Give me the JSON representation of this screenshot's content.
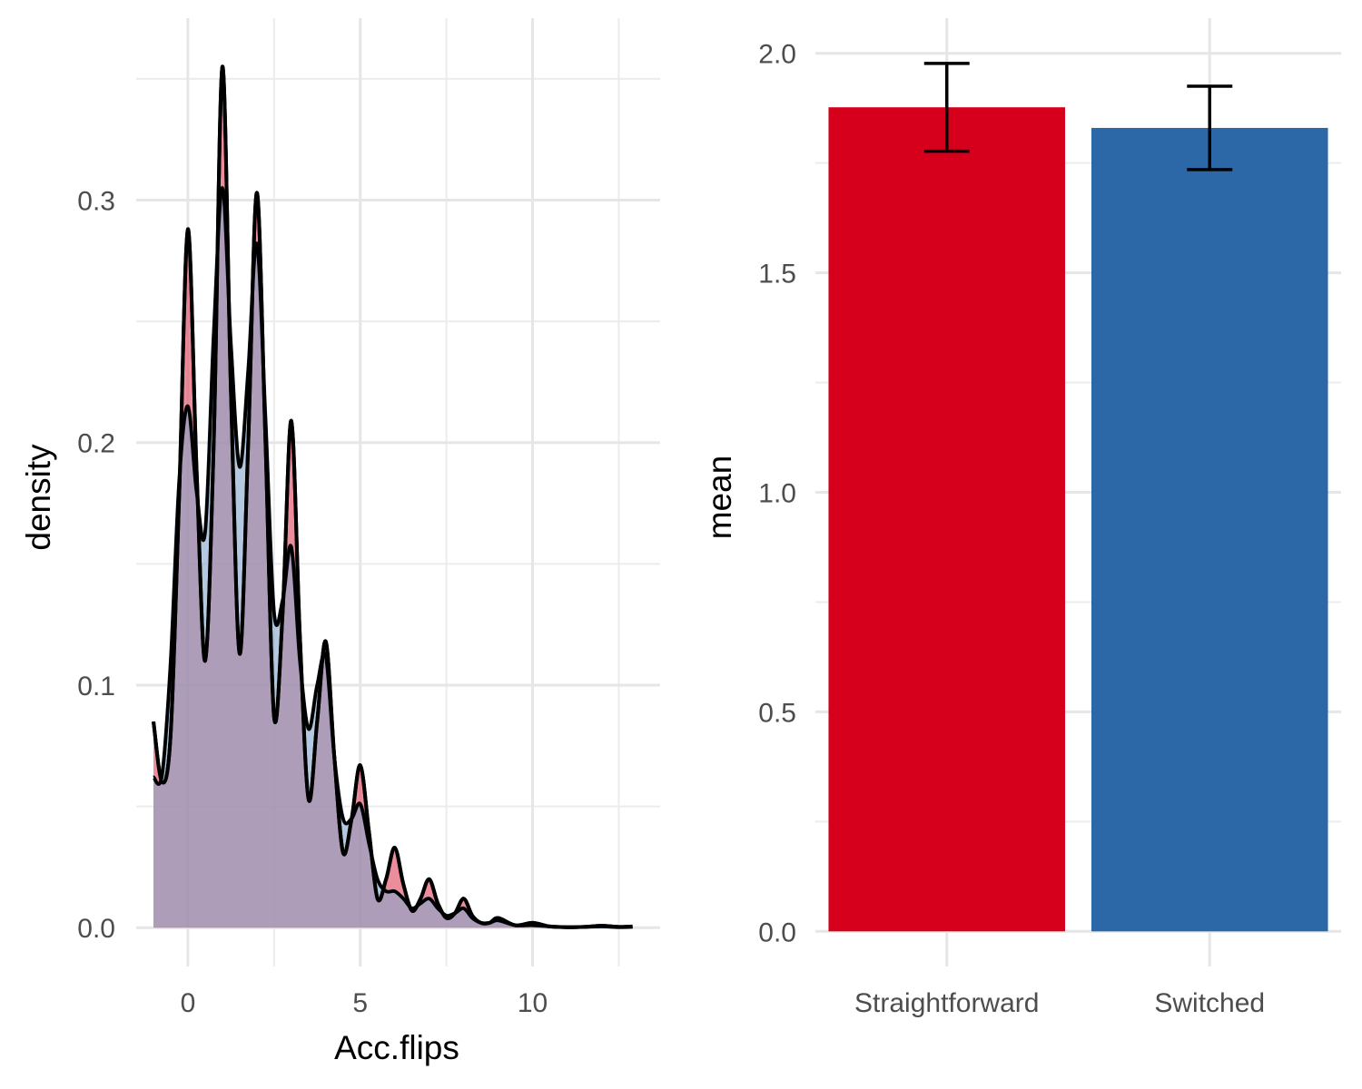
{
  "chart_data": [
    {
      "type": "area",
      "xlabel": "Acc.flips",
      "ylabel": "density",
      "xlim": [
        -1.5,
        13.7
      ],
      "ylim": [
        -0.016,
        0.375
      ],
      "xticks": [
        0,
        5,
        10
      ],
      "xtick_labels": [
        "0",
        "5",
        "10"
      ],
      "yticks": [
        0.0,
        0.1,
        0.2,
        0.3
      ],
      "ytick_labels": [
        "0.0",
        "0.1",
        "0.2",
        "0.3"
      ],
      "grid": true,
      "series": [
        {
          "color": "#e0475d",
          "x": [
            -1.0,
            -0.75,
            -0.5,
            -0.25,
            0.0,
            0.25,
            0.5,
            0.75,
            1.0,
            1.25,
            1.5,
            1.75,
            2.0,
            2.25,
            2.5,
            2.75,
            3.0,
            3.25,
            3.5,
            3.75,
            4.0,
            4.25,
            4.5,
            4.75,
            5.0,
            5.25,
            5.5,
            5.75,
            6.0,
            6.25,
            6.5,
            6.75,
            7.0,
            7.25,
            7.5,
            7.75,
            8.0,
            8.25,
            8.5,
            8.75,
            9.0,
            9.5,
            10.0,
            10.5,
            11.0,
            11.5,
            12.0,
            12.5,
            12.9
          ],
          "y": [
            0.085,
            0.06,
            0.08,
            0.18,
            0.288,
            0.19,
            0.11,
            0.2,
            0.355,
            0.22,
            0.113,
            0.2,
            0.303,
            0.2,
            0.087,
            0.13,
            0.209,
            0.12,
            0.053,
            0.085,
            0.118,
            0.07,
            0.031,
            0.045,
            0.067,
            0.04,
            0.012,
            0.02,
            0.033,
            0.018,
            0.007,
            0.012,
            0.02,
            0.01,
            0.004,
            0.006,
            0.012,
            0.005,
            0.002,
            0.002,
            0.004,
            0.001,
            0.002,
            0.0005,
            0.0002,
            0.0003,
            0.0008,
            0.0003,
            0.0005
          ]
        },
        {
          "color": "#86a8cc",
          "x": [
            -1.0,
            -0.75,
            -0.5,
            -0.25,
            0.0,
            0.25,
            0.5,
            0.75,
            1.0,
            1.25,
            1.5,
            1.75,
            2.0,
            2.25,
            2.5,
            2.75,
            3.0,
            3.25,
            3.5,
            3.75,
            4.0,
            4.25,
            4.5,
            4.75,
            5.0,
            5.25,
            5.5,
            5.75,
            6.0,
            6.25,
            6.5,
            6.75,
            7.0,
            7.25,
            7.5,
            7.75,
            8.0,
            8.25,
            8.5,
            8.75,
            9.0,
            9.5,
            10.0,
            10.5,
            11.0,
            11.5,
            12.0,
            12.5,
            12.9
          ],
          "y": [
            0.062,
            0.063,
            0.11,
            0.185,
            0.215,
            0.18,
            0.163,
            0.245,
            0.305,
            0.24,
            0.19,
            0.23,
            0.282,
            0.21,
            0.13,
            0.135,
            0.157,
            0.11,
            0.082,
            0.1,
            0.112,
            0.07,
            0.045,
            0.045,
            0.051,
            0.035,
            0.02,
            0.015,
            0.015,
            0.012,
            0.008,
            0.01,
            0.012,
            0.008,
            0.005,
            0.006,
            0.008,
            0.004,
            0.002,
            0.002,
            0.003,
            0.001,
            0.001,
            0.0005,
            0.0002,
            0.0003,
            0.0005,
            0.0002,
            0.0003
          ]
        }
      ]
    },
    {
      "type": "bar",
      "xlabel": "",
      "ylabel": "mean",
      "categories": [
        "Straightforward",
        "Switched"
      ],
      "values": [
        1.877,
        1.83
      ],
      "error_low": [
        1.777,
        1.735
      ],
      "error_high": [
        1.977,
        1.925
      ],
      "colors": [
        "#d7001c",
        "#2c68a7"
      ],
      "ylim": [
        -0.08,
        2.08
      ],
      "yticks": [
        0.0,
        0.5,
        1.0,
        1.5,
        2.0
      ],
      "ytick_labels": [
        "0.0",
        "0.5",
        "1.0",
        "1.5",
        "2.0"
      ],
      "grid": true
    }
  ]
}
